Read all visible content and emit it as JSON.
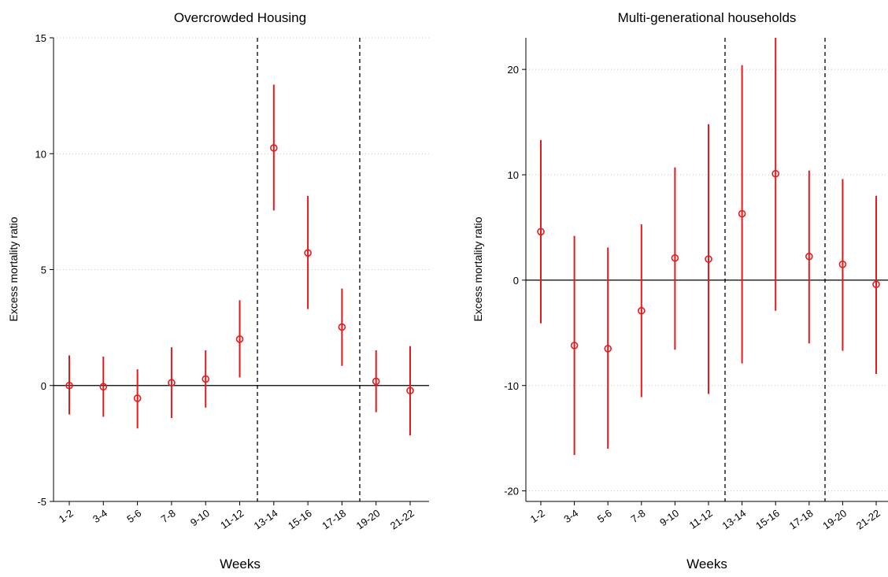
{
  "chart_data": [
    {
      "type": "scatter",
      "title": "Overcrowded Housing",
      "xlabel": "Weeks",
      "ylabel": "Excess mortality ratio",
      "categories": [
        "1-2",
        "3-4",
        "5-6",
        "7-8",
        "9-10",
        "11-12",
        "13-14",
        "15-16",
        "17-18",
        "19-20",
        "21-22"
      ],
      "ylim": [
        -5,
        15
      ],
      "yticks": [
        -5,
        0,
        5,
        10,
        15
      ],
      "grid": true,
      "reference_line_y": 0,
      "vertical_dashed_lines_after": [
        "11-12",
        "17-18"
      ],
      "point_color": "#e41a1c",
      "series": [
        {
          "estimate": [
            0.0,
            -0.05,
            -0.55,
            0.12,
            0.28,
            2.0,
            10.25,
            5.72,
            2.52,
            0.18,
            -0.22
          ],
          "ci_low": [
            -1.25,
            -1.35,
            -1.85,
            -1.4,
            -0.95,
            0.35,
            7.55,
            3.3,
            0.85,
            -1.15,
            -2.15
          ],
          "ci_high": [
            1.3,
            1.25,
            0.7,
            1.65,
            1.52,
            3.68,
            12.98,
            8.18,
            4.18,
            1.52,
            1.7
          ]
        }
      ]
    },
    {
      "type": "scatter",
      "title": "Multi-generational households",
      "xlabel": "Weeks",
      "ylabel": "Excess mortality ratio",
      "categories": [
        "1-2",
        "3-4",
        "5-6",
        "7-8",
        "9-10",
        "11-12",
        "13-14",
        "15-16",
        "17-18",
        "19-20",
        "21-22"
      ],
      "ylim": [
        -21,
        23
      ],
      "yticks": [
        -20,
        -10,
        0,
        10,
        20
      ],
      "grid": true,
      "reference_line_y": 0,
      "vertical_dashed_lines_after": [
        "11-12",
        "17-18"
      ],
      "point_color": "#e41a1c",
      "series": [
        {
          "estimate": [
            4.6,
            -6.2,
            -6.5,
            -2.9,
            2.1,
            2.0,
            6.3,
            10.1,
            2.25,
            1.5,
            -0.4
          ],
          "ci_low": [
            -4.1,
            -16.6,
            -16.0,
            -11.1,
            -6.6,
            -10.8,
            -7.9,
            -2.9,
            -6.0,
            -6.7,
            -8.9
          ],
          "ci_high": [
            13.3,
            4.2,
            3.1,
            5.3,
            10.7,
            14.8,
            20.4,
            23.0,
            10.4,
            9.6,
            8.0
          ]
        }
      ]
    }
  ]
}
